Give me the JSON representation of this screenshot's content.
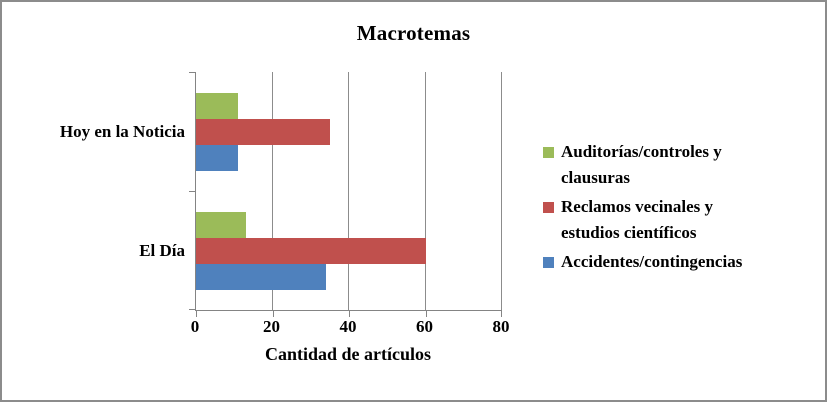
{
  "chart_data": {
    "type": "bar",
    "orientation": "horizontal",
    "title": "Macrotemas",
    "xlabel": "Cantidad de artículos",
    "categories": [
      "Hoy en la Noticia",
      "El Día"
    ],
    "series": [
      {
        "name": "Auditorías/controles y clausuras",
        "color": "#9BBB59",
        "values": [
          11,
          13
        ]
      },
      {
        "name": "Reclamos vecinales y estudios científicos",
        "color": "#C0504D",
        "values": [
          35,
          60
        ]
      },
      {
        "name": "Accidentes/contingencias",
        "color": "#4F81BD",
        "values": [
          11,
          34
        ]
      }
    ],
    "xlim": [
      0,
      80
    ],
    "xticks": [
      0,
      20,
      40,
      60,
      80
    ],
    "grid": true,
    "legend_position": "right",
    "colors": {
      "axis": "#848484",
      "gridline": "#8c8c8c",
      "frame_border": "#8c8c8c",
      "text": "#000000",
      "background": "#ffffff"
    }
  }
}
